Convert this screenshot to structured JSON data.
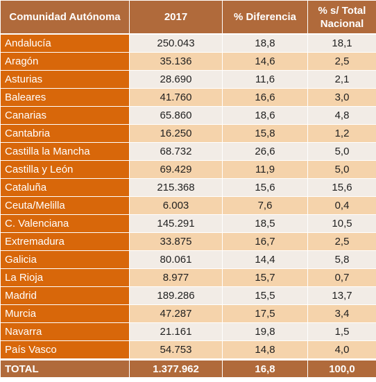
{
  "header": {
    "col1": "Comunidad Autónoma",
    "col2": "2017",
    "col3": "% Diferencia",
    "col4": "% s/ Total Nacional"
  },
  "rows": [
    {
      "region": "Andalucía",
      "value": "250.043",
      "diff": "18,8",
      "share": "18,1"
    },
    {
      "region": "Aragón",
      "value": "35.136",
      "diff": "14,6",
      "share": "2,5"
    },
    {
      "region": "Asturias",
      "value": "28.690",
      "diff": "11,6",
      "share": "2,1"
    },
    {
      "region": "Baleares",
      "value": "41.760",
      "diff": "16,6",
      "share": "3,0"
    },
    {
      "region": "Canarias",
      "value": "65.860",
      "diff": "18,6",
      "share": "4,8"
    },
    {
      "region": "Cantabria",
      "value": "16.250",
      "diff": "15,8",
      "share": "1,2"
    },
    {
      "region": "Castilla la Mancha",
      "value": "68.732",
      "diff": "26,6",
      "share": "5,0"
    },
    {
      "region": "Castilla y León",
      "value": "69.429",
      "diff": "11,9",
      "share": "5,0"
    },
    {
      "region": "Cataluña",
      "value": "215.368",
      "diff": "15,6",
      "share": "15,6"
    },
    {
      "region": "Ceuta/Melilla",
      "value": "6.003",
      "diff": "7,6",
      "share": "0,4"
    },
    {
      "region": "C. Valenciana",
      "value": "145.291",
      "diff": "18,5",
      "share": "10,5"
    },
    {
      "region": "Extremadura",
      "value": "33.875",
      "diff": "16,7",
      "share": "2,5"
    },
    {
      "region": "Galicia",
      "value": "80.061",
      "diff": "14,4",
      "share": "5,8"
    },
    {
      "region": "La Rioja",
      "value": "8.977",
      "diff": "15,7",
      "share": "0,7"
    },
    {
      "region": "Madrid",
      "value": "189.286",
      "diff": "15,5",
      "share": "13,7"
    },
    {
      "region": "Murcia",
      "value": "47.287",
      "diff": "17,5",
      "share": "3,4"
    },
    {
      "region": "Navarra",
      "value": "21.161",
      "diff": "19,8",
      "share": "1,5"
    },
    {
      "region": "País Vasco",
      "value": "54.753",
      "diff": "14,8",
      "share": "4,0"
    }
  ],
  "total": {
    "label": "TOTAL",
    "value": "1.377.962",
    "diff": "16,8",
    "share": "100,0"
  },
  "colors": {
    "header_brown": "#b06a3b",
    "region_orange": "#d8670a",
    "row_light": "#f2ece6",
    "row_peach": "#f5d3ab"
  }
}
